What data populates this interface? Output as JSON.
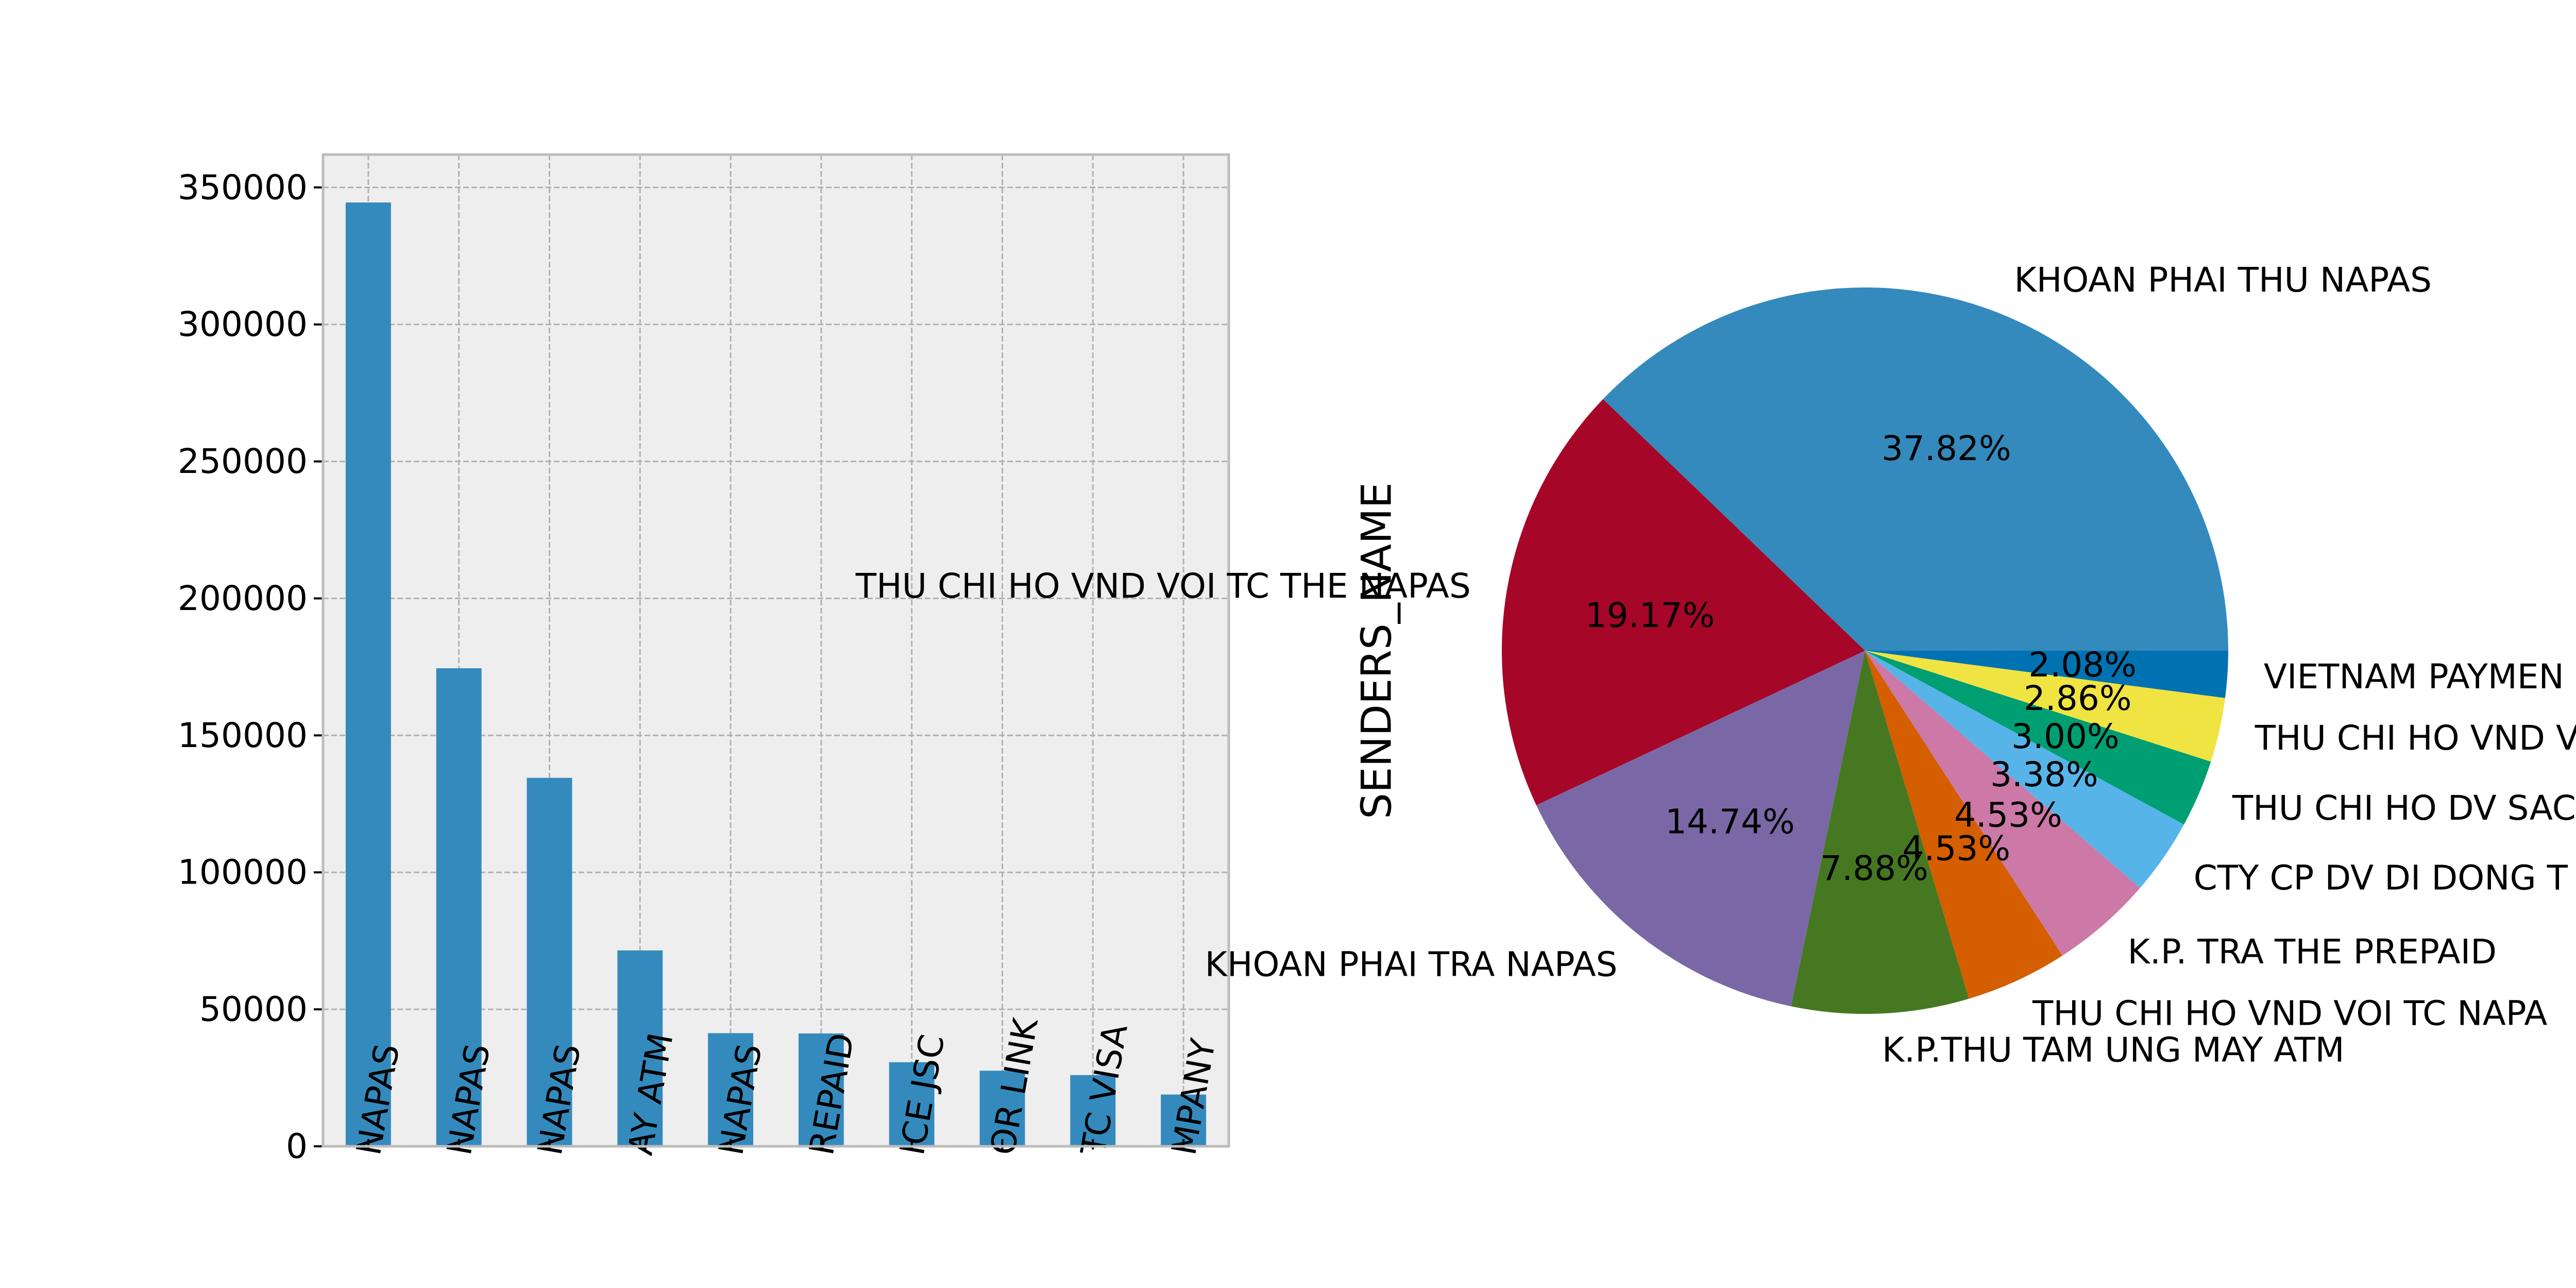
{
  "chart_data": [
    {
      "type": "bar",
      "title": "",
      "xlabel": "",
      "ylabel": "",
      "ylim": [
        0,
        362000
      ],
      "yticks": [
        0,
        50000,
        100000,
        150000,
        200000,
        250000,
        300000,
        350000
      ],
      "grid": true,
      "categories": [
        "NAPAS",
        "NAPAS",
        "NAPAS",
        "AY ATM",
        "NAPAS",
        "REPAID",
        "ICE JSC",
        "OR LINK",
        "TC VISA",
        "MPANY"
      ],
      "values": [
        344500,
        174500,
        134500,
        71500,
        41300,
        41200,
        30700,
        27600,
        26000,
        18900
      ],
      "color": "#348ABD"
    },
    {
      "type": "pie",
      "ylabel": "SENDERS_NAME",
      "labels": [
        "KHOAN PHAI THU NAPAS",
        "THU CHI HO VND VOI TC THE NAPAS",
        "KHOAN PHAI TRA NAPAS",
        "K.P.THU TAM UNG MAY ATM",
        "THU CHI HO VND VOI TC NAPA",
        "K.P. TRA THE PREPAID",
        "CTY CP DV DI DONG T",
        "THU CHI HO DV SAC",
        "THU CHI HO VND V",
        "VIETNAM PAYMEN"
      ],
      "values": [
        37.82,
        19.17,
        14.74,
        7.88,
        4.53,
        4.53,
        3.38,
        3.0,
        2.86,
        2.08
      ],
      "pct_labels": [
        "37.82%",
        "19.17%",
        "14.74%",
        "7.88%",
        "4.53%",
        "4.53%",
        "3.38%",
        "3.00%",
        "2.86%",
        "2.08%"
      ],
      "colors": [
        "#348ABD",
        "#A60628",
        "#7A68A6",
        "#467821",
        "#D55E00",
        "#CC79A7",
        "#56B4E9",
        "#009E73",
        "#F0E442",
        "#0072B2"
      ]
    }
  ]
}
